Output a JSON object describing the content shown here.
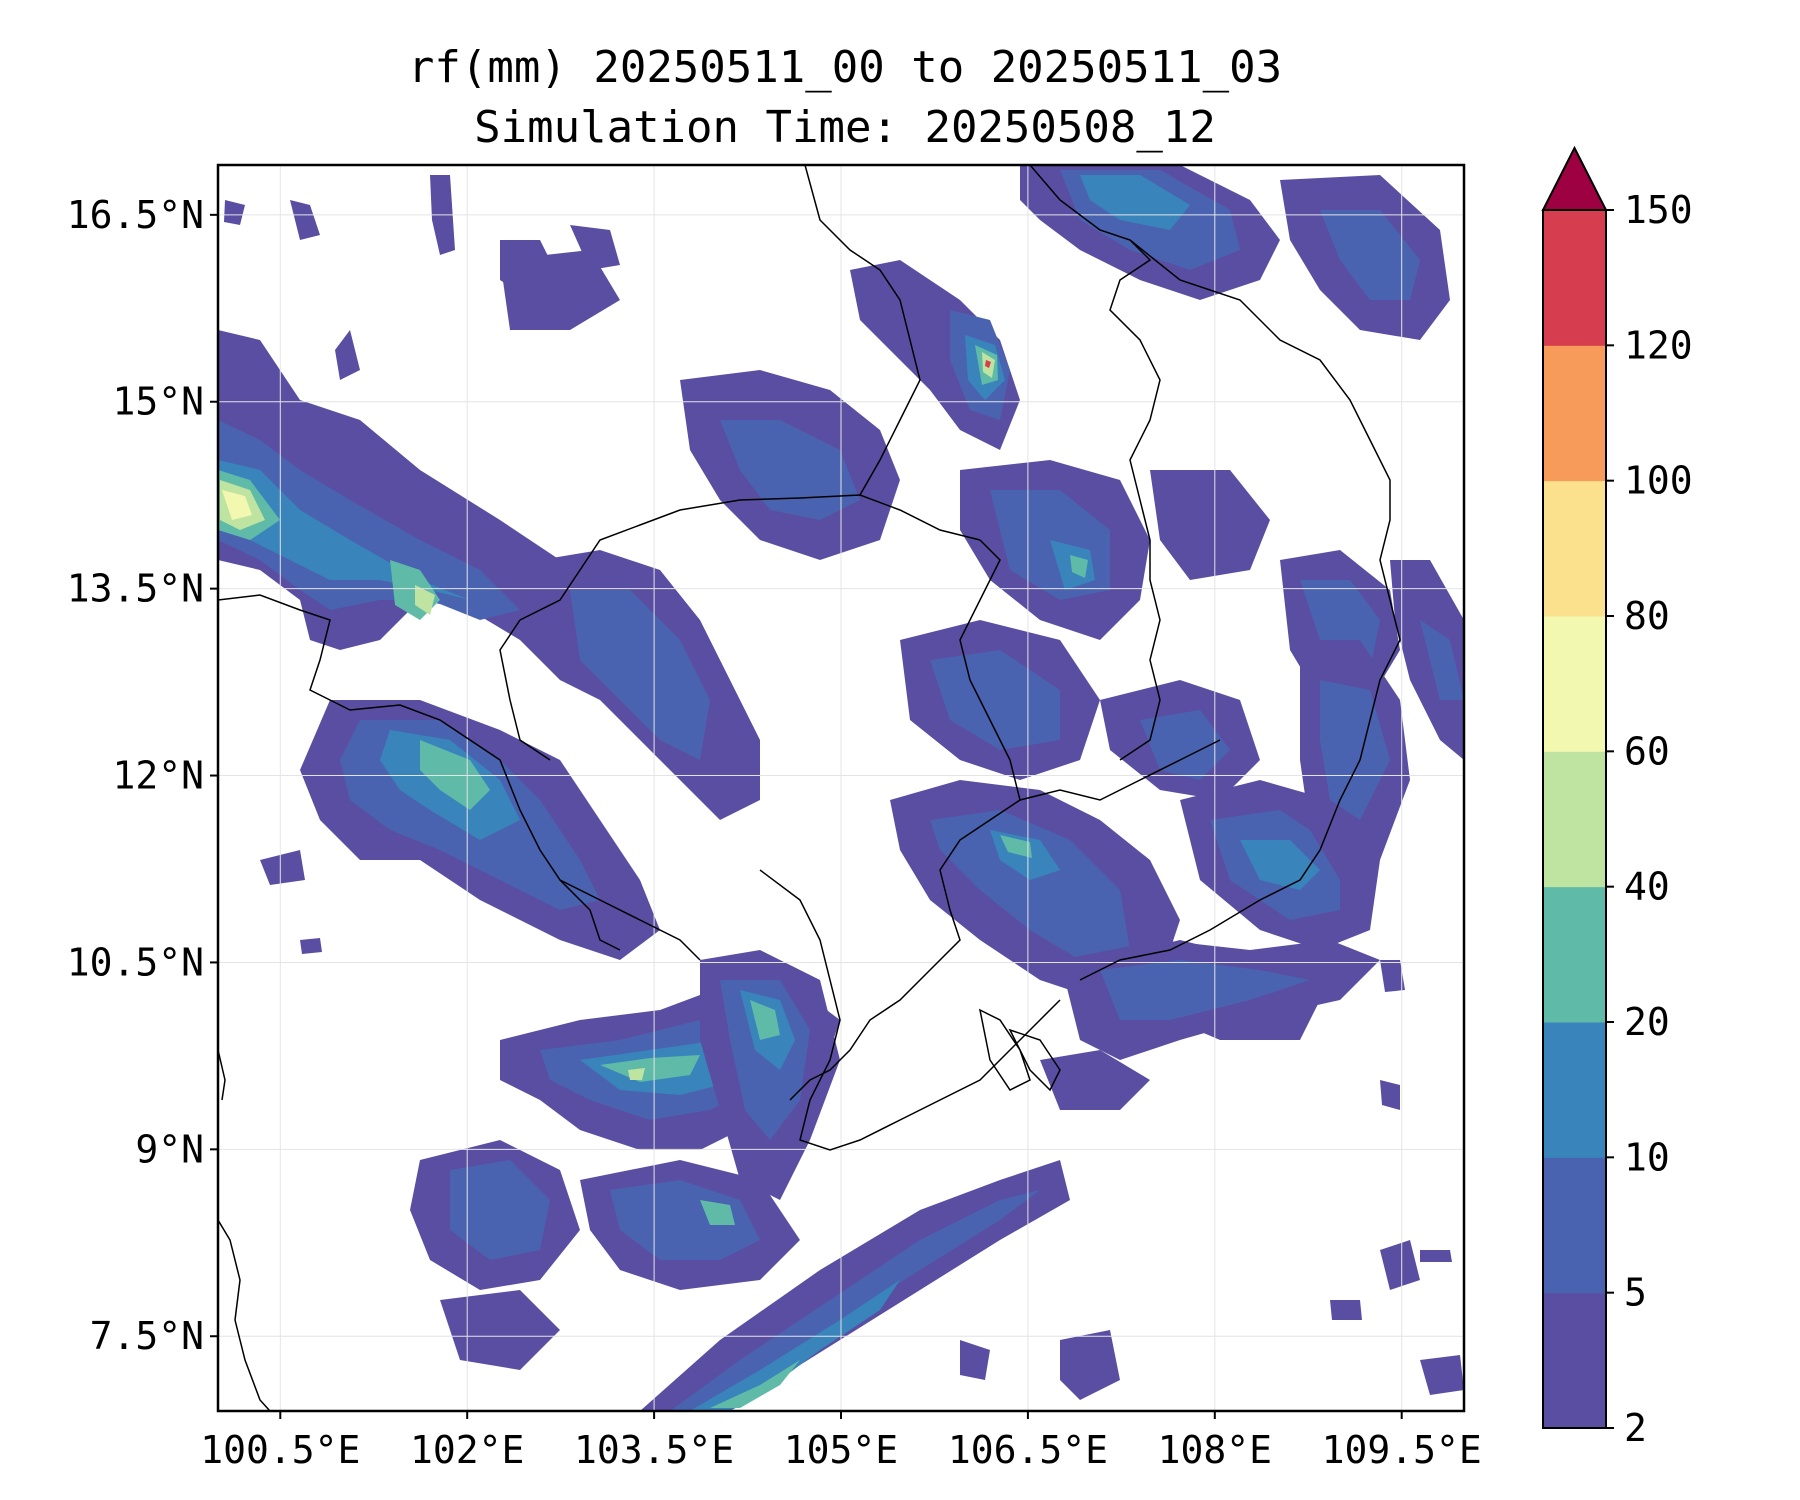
{
  "title": {
    "line1": "rf(mm) 20250511_00 to 20250511_03",
    "line2": "Simulation Time: 20250508_12"
  },
  "map": {
    "lon_range": [
      100.0,
      110.0
    ],
    "lat_range": [
      6.9,
      16.9
    ],
    "x_ticks": [
      "100.5°E",
      "102°E",
      "103.5°E",
      "105°E",
      "106.5°E",
      "108°E",
      "109.5°E"
    ],
    "x_tick_values": [
      100.5,
      102.0,
      103.5,
      105.0,
      106.5,
      108.0,
      109.5
    ],
    "y_ticks": [
      "16.5°N",
      "15°N",
      "13.5°N",
      "12°N",
      "10.5°N",
      "9°N",
      "7.5°N"
    ],
    "y_tick_values": [
      16.5,
      15.0,
      13.5,
      12.0,
      10.5,
      9.0,
      7.5
    ],
    "gridlines": true
  },
  "colorbar": {
    "levels": [
      "2",
      "5",
      "10",
      "20",
      "40",
      "60",
      "80",
      "100",
      "120",
      "150"
    ],
    "colors": [
      "#5a4ea2",
      "#4a63b0",
      "#3a84bc",
      "#5fbaa8",
      "#bfe3a0",
      "#f2f8b0",
      "#fbe08e",
      "#f79b5b",
      "#d63e4f"
    ],
    "extend_color": "#9e0142",
    "extend": "max"
  },
  "icons": {
    "rain_blobs": "rainfall-contour",
    "borders": "country-border-lines"
  }
}
